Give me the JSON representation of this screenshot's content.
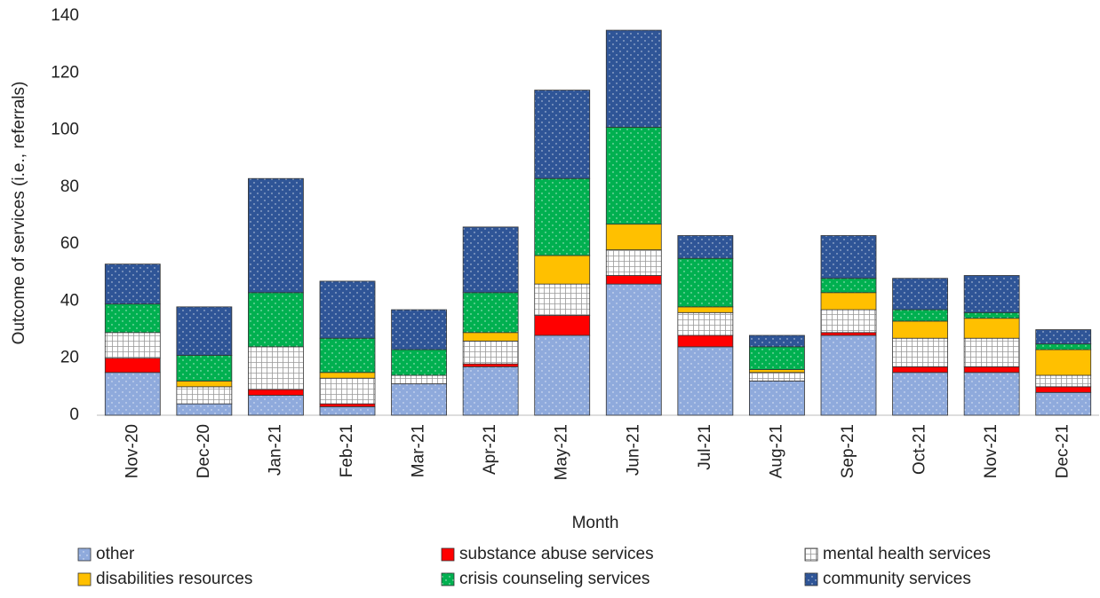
{
  "chart_data": {
    "type": "stacked_bar",
    "x_label": "Month",
    "y_label": "Outcome of services (i.e., referrals)",
    "categories": [
      "Nov-20",
      "Dec-20",
      "Jan-21",
      "Feb-21",
      "Mar-21",
      "Apr-21",
      "May-21",
      "Jun-21",
      "Jul-21",
      "Aug-21",
      "Sep-21",
      "Oct-21",
      "Nov-21",
      "Dec-21"
    ],
    "series": [
      {
        "name": "other",
        "color": "#8faadc",
        "pattern": "dots",
        "values": [
          15,
          4,
          7,
          3,
          11,
          17,
          28,
          46,
          24,
          12,
          28,
          15,
          15,
          8
        ]
      },
      {
        "name": "substance abuse services",
        "color": "#ff0000",
        "pattern": "solid",
        "values": [
          5,
          0,
          2,
          1,
          0,
          1,
          7,
          3,
          4,
          0,
          1,
          2,
          2,
          2
        ]
      },
      {
        "name": "mental health services",
        "color": "#ffffff",
        "pattern": "grid",
        "values": [
          9,
          6,
          15,
          9,
          3,
          8,
          11,
          9,
          8,
          3,
          8,
          10,
          10,
          4
        ]
      },
      {
        "name": "disabilities resources",
        "color": "#ffc000",
        "pattern": "solid",
        "values": [
          0,
          2,
          0,
          2,
          0,
          3,
          10,
          9,
          2,
          1,
          6,
          6,
          7,
          9
        ]
      },
      {
        "name": "crisis counseling services",
        "color": "#00b050",
        "pattern": "dots",
        "values": [
          10,
          9,
          19,
          12,
          9,
          14,
          27,
          34,
          17,
          8,
          5,
          4,
          2,
          2
        ]
      },
      {
        "name": "community services",
        "color": "#2f5597",
        "pattern": "dots",
        "values": [
          14,
          17,
          40,
          20,
          14,
          23,
          31,
          34,
          8,
          4,
          15,
          11,
          13,
          5
        ]
      }
    ],
    "ylim": [
      0,
      140
    ],
    "yticks": [
      0,
      20,
      40,
      60,
      80,
      100,
      120,
      140
    ],
    "grid": false
  }
}
